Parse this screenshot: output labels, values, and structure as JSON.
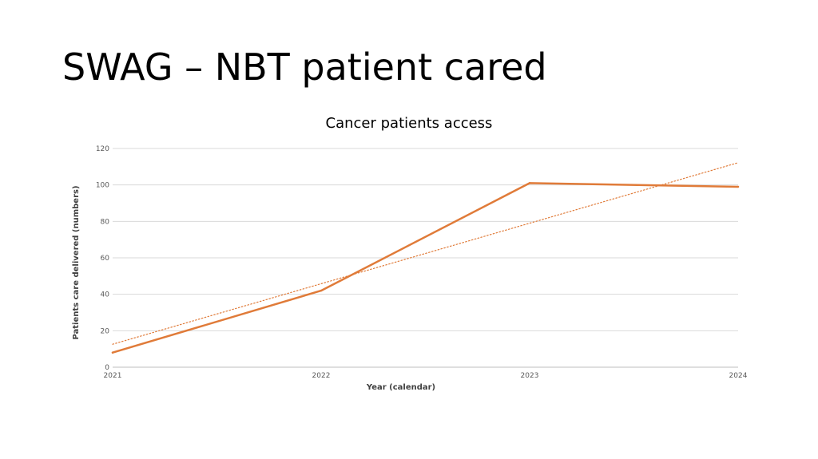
{
  "slide": {
    "title": "SWAG – NBT patient cared"
  },
  "chart_data": {
    "type": "line",
    "title": "Cancer patients access",
    "xlabel": "Year (calendar)",
    "ylabel": "Patients care delivered (numbers)",
    "categories": [
      "2021",
      "2022",
      "2023",
      "2024"
    ],
    "series": [
      {
        "values": [
          8,
          42,
          101,
          99
        ],
        "color": "#E07B39"
      }
    ],
    "trendline": {
      "type": "linear",
      "style": "dotted",
      "color": "#E07B39",
      "values": [
        12.6,
        45.8,
        79.0,
        112.2
      ]
    },
    "ylim": [
      0,
      120
    ],
    "yticks": [
      0,
      20,
      40,
      60,
      80,
      100,
      120
    ],
    "grid": true,
    "legend": "none"
  }
}
